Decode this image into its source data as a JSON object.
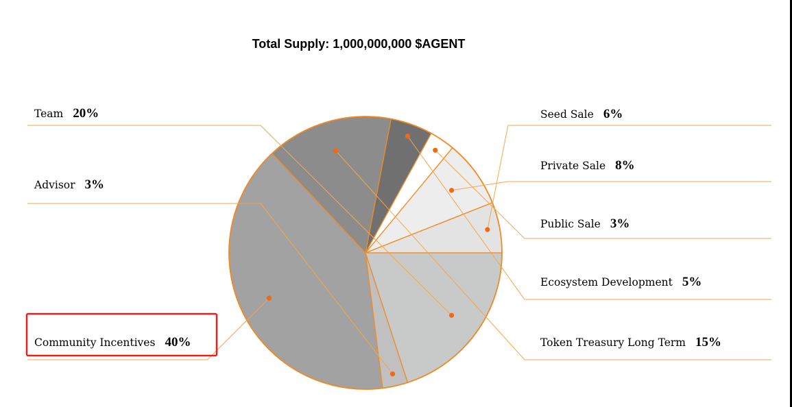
{
  "chart_data": {
    "type": "pie",
    "title": "Total Supply: 1,000,000,000 $AGENT",
    "slices": [
      {
        "name": "Seed Sale",
        "label": "Seed Sale",
        "percent_label": "6%",
        "value": 6,
        "color": "#e3e3e3"
      },
      {
        "name": "Private Sale",
        "label": "Private Sale",
        "percent_label": "8%",
        "value": 8,
        "color": "#ededed"
      },
      {
        "name": "Public Sale",
        "label": "Public Sale",
        "percent_label": "3%",
        "value": 3,
        "color": "#ffffff"
      },
      {
        "name": "Ecosystem Development",
        "label": "Ecosystem Development",
        "percent_label": "5%",
        "value": 5,
        "color": "#707070"
      },
      {
        "name": "Token Treasury Long Term",
        "label": "Token Treasury Long Term",
        "percent_label": "15%",
        "value": 15,
        "color": "#8c8c8c"
      },
      {
        "name": "Community Incentives",
        "label": "Community Incentives",
        "percent_label": "40%",
        "value": 40,
        "color": "#a1a2a1"
      },
      {
        "name": "Advisor",
        "label": "Advisor",
        "percent_label": "3%",
        "value": 3,
        "color": "#c0c0c0"
      },
      {
        "name": "Team",
        "label": "Team",
        "percent_label": "20%",
        "value": 20,
        "color": "#c8c9c9"
      }
    ],
    "highlighted": "Community Incentives",
    "legend": "leader-line labels on both sides"
  },
  "colors": {
    "outline": "#f08a24",
    "leader_line": "#f5a64c",
    "dot": "#ef6a12",
    "highlight_box": "#e5201f"
  }
}
